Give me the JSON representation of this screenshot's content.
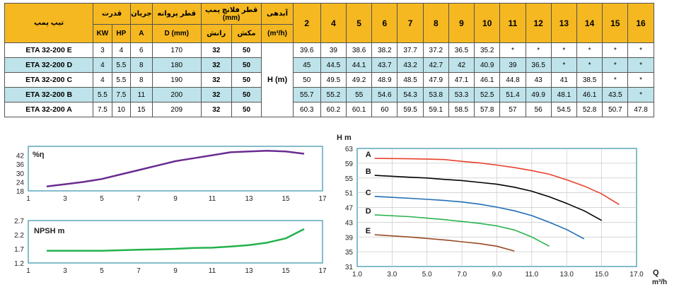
{
  "table": {
    "headers": {
      "pump_type": "تیپ پمپ",
      "power": "قدرت",
      "power_units": [
        "KW",
        "HP"
      ],
      "current": "جریان",
      "current_unit": "A",
      "impeller": "قطر پروانه",
      "impeller_unit": "D (mm)",
      "flange": "قطر فلانچ پمپ",
      "flange_unit": "(mm)",
      "flange_sub": [
        "رانش",
        "مکش"
      ],
      "flow": "آبدهی",
      "flow_unit": "(m³/h)",
      "flows": [
        "2",
        "4",
        "5",
        "6",
        "7",
        "8",
        "9",
        "10",
        "11",
        "12",
        "13",
        "14",
        "15",
        "16"
      ]
    },
    "head_label": "H (m)",
    "rows": [
      {
        "model": "ETA 32-200 E",
        "kw": "3",
        "hp": "4",
        "a": "6",
        "d": "170",
        "discharge": "32",
        "suction": "50",
        "values": [
          "39.6",
          "39",
          "38.6",
          "38.2",
          "37.7",
          "37.2",
          "36.5",
          "35.2",
          "*",
          "*",
          "*",
          "*",
          "*",
          "*"
        ]
      },
      {
        "model": "ETA 32-200 D",
        "kw": "4",
        "hp": "5.5",
        "a": "8",
        "d": "180",
        "discharge": "32",
        "suction": "50",
        "values": [
          "45",
          "44.5",
          "44.1",
          "43.7",
          "43.2",
          "42.7",
          "42",
          "40.9",
          "39",
          "36.5",
          "*",
          "*",
          "*",
          "*"
        ]
      },
      {
        "model": "ETA 32-200 C",
        "kw": "4",
        "hp": "5.5",
        "a": "8",
        "d": "190",
        "discharge": "32",
        "suction": "50",
        "values": [
          "50",
          "49.5",
          "49.2",
          "48.9",
          "48.5",
          "47.9",
          "47.1",
          "46.1",
          "44.8",
          "43",
          "41",
          "38.5",
          "*",
          "*"
        ]
      },
      {
        "model": "ETA 32-200 B",
        "kw": "5.5",
        "hp": "7.5",
        "a": "11",
        "d": "200",
        "discharge": "32",
        "suction": "50",
        "values": [
          "55.7",
          "55.2",
          "55",
          "54.6",
          "54.3",
          "53.8",
          "53.3",
          "52.5",
          "51.4",
          "49.9",
          "48.1",
          "46.1",
          "43.5",
          "*"
        ]
      },
      {
        "model": "ETA 32-200 A",
        "kw": "7.5",
        "hp": "10",
        "a": "15",
        "d": "209",
        "discharge": "32",
        "suction": "50",
        "values": [
          "60.3",
          "60.2",
          "60.1",
          "60",
          "59.5",
          "59.1",
          "58.5",
          "57.8",
          "57",
          "56",
          "54.5",
          "52.8",
          "50.7",
          "47.8"
        ]
      }
    ]
  },
  "chart_data": [
    {
      "type": "line",
      "label": "%η",
      "x_ticks": [
        1,
        3,
        5,
        7,
        9,
        11,
        13,
        15,
        17
      ],
      "y_ticks": [
        18,
        24,
        30,
        36,
        42
      ],
      "xlim": [
        1,
        17
      ],
      "ylim": [
        18,
        48
      ],
      "color": "#6a2c91",
      "x": [
        2,
        3,
        4,
        5,
        6,
        7,
        8,
        9,
        10,
        11,
        12,
        13,
        14,
        15,
        16
      ],
      "y": [
        21,
        22.5,
        24,
        26,
        29,
        32,
        35,
        38,
        40,
        42,
        44,
        44.5,
        45,
        44.5,
        43
      ]
    },
    {
      "type": "line",
      "label": "NPSH m",
      "x_ticks": [
        1,
        3,
        5,
        7,
        9,
        11,
        13,
        15,
        17
      ],
      "y_ticks": [
        1.2,
        1.7,
        2.2,
        2.7
      ],
      "xlim": [
        1,
        17
      ],
      "ylim": [
        1.2,
        2.7
      ],
      "color": "#22b24c",
      "x": [
        2,
        3,
        4,
        5,
        6,
        7,
        8,
        9,
        10,
        11,
        12,
        13,
        14,
        15,
        16
      ],
      "y": [
        1.63,
        1.63,
        1.63,
        1.63,
        1.65,
        1.67,
        1.68,
        1.7,
        1.73,
        1.74,
        1.78,
        1.83,
        1.92,
        2.07,
        2.4
      ]
    },
    {
      "type": "line",
      "y_title": "H m",
      "x_title": "Q",
      "x_unit": "m³/h",
      "x_ticks": [
        "1.0",
        "3.0",
        "5.0",
        "7.0",
        "9.0",
        "11.0",
        "13.0",
        "15.0",
        "17.0"
      ],
      "y_ticks": [
        31,
        35,
        39,
        43,
        47,
        51,
        55,
        59,
        63
      ],
      "xlim": [
        1,
        17
      ],
      "ylim": [
        31,
        63
      ],
      "series": [
        {
          "name": "A",
          "color": "#e8412d",
          "x": [
            2,
            4,
            5,
            6,
            7,
            8,
            9,
            10,
            11,
            12,
            13,
            14,
            15,
            16
          ],
          "y": [
            60.3,
            60.2,
            60.1,
            60,
            59.5,
            59.1,
            58.5,
            57.8,
            57,
            56,
            54.5,
            52.8,
            50.7,
            47.8
          ]
        },
        {
          "name": "B",
          "color": "#000000",
          "x": [
            2,
            4,
            5,
            6,
            7,
            8,
            9,
            10,
            11,
            12,
            13,
            14,
            15
          ],
          "y": [
            55.7,
            55.2,
            55,
            54.6,
            54.3,
            53.8,
            53.3,
            52.5,
            51.4,
            49.9,
            48.1,
            46.1,
            43.5
          ]
        },
        {
          "name": "C",
          "color": "#1f6db5",
          "x": [
            2,
            4,
            5,
            6,
            7,
            8,
            9,
            10,
            11,
            12,
            13,
            14
          ],
          "y": [
            50,
            49.5,
            49.2,
            48.9,
            48.5,
            47.9,
            47.1,
            46.1,
            44.8,
            43,
            41,
            38.5
          ]
        },
        {
          "name": "D",
          "color": "#2ab34f",
          "x": [
            2,
            4,
            5,
            6,
            7,
            8,
            9,
            10,
            11,
            12
          ],
          "y": [
            45,
            44.5,
            44.1,
            43.7,
            43.2,
            42.7,
            42,
            40.9,
            39,
            36.5
          ]
        },
        {
          "name": "E",
          "color": "#9a4a25",
          "x": [
            2,
            4,
            5,
            6,
            7,
            8,
            9,
            10
          ],
          "y": [
            39.6,
            39,
            38.6,
            38.2,
            37.7,
            37.2,
            36.5,
            35.2
          ]
        }
      ]
    }
  ]
}
